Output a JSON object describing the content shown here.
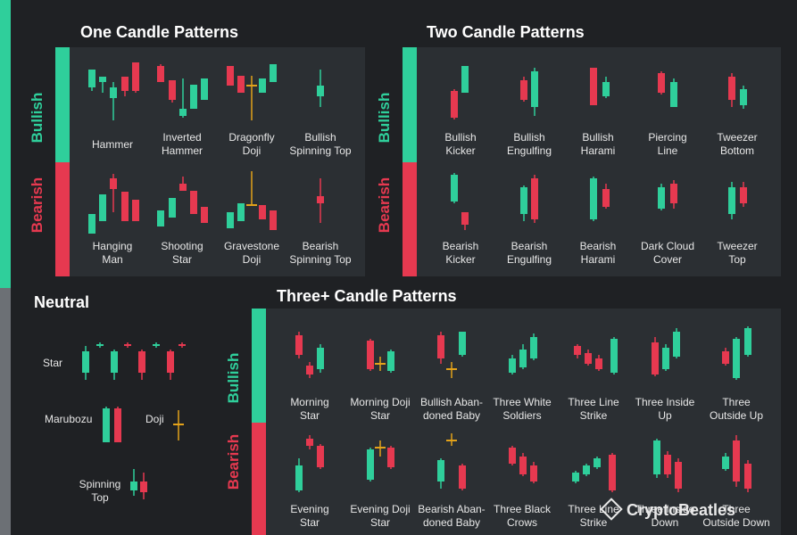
{
  "sections": {
    "one": {
      "title": "One Candle Patterns",
      "bullish": "Bullish",
      "bearish": "Bearish",
      "bull_items": [
        "Hammer",
        "Inverted\nHammer",
        "Dragonfly\nDoji",
        "Bullish\nSpinning Top"
      ],
      "bear_items": [
        "Hanging\nMan",
        "Shooting\nStar",
        "Gravestone\nDoji",
        "Bearish\nSpinning Top"
      ]
    },
    "two": {
      "title": "Two Candle Patterns",
      "bullish": "Bullish",
      "bearish": "Bearish",
      "bull_items": [
        "Bullish\nKicker",
        "Bullish\nEngulfing",
        "Bullish\nHarami",
        "Piercing\nLine",
        "Tweezer\nBottom"
      ],
      "bear_items": [
        "Bearish\nKicker",
        "Bearish\nEngulfing",
        "Bearish\nHarami",
        "Dark Cloud\nCover",
        "Tweezer\nTop"
      ]
    },
    "three": {
      "title": "Three+ Candle Patterns",
      "bullish": "Bullish",
      "bearish": "Bearish",
      "bull_items": [
        "Morning\nStar",
        "Morning Doji\nStar",
        "Bullish Aban-\ndoned Baby",
        "Three White\nSoldiers",
        "Three Line\nStrike",
        "Three Inside\nUp",
        "Three\nOutside Up"
      ],
      "bear_items": [
        "Evening\nStar",
        "Evening Doji\nStar",
        "Bearish Aban-\ndoned Baby",
        "Three Black\nCrows",
        "Three Line\nStrike",
        "Three Inside\nDown",
        "Three\nOutside Down"
      ]
    },
    "neutral": {
      "title": "Neutral",
      "star": "Star",
      "marubozu": "Marubozu",
      "doji": "Doji",
      "spinning_top": "Spinning\nTop"
    }
  },
  "watermark": "CryptoBeatles",
  "colors": {
    "bull": "#2fcf9b",
    "bear": "#e63950",
    "doji": "#e3a21a",
    "panel": "#2b2f33",
    "bg": "#1f2124"
  }
}
